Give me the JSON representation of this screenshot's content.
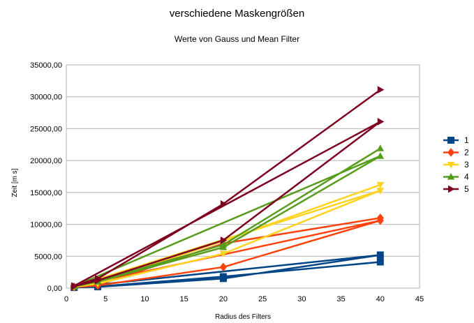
{
  "chart_data": {
    "type": "line",
    "title": "verschiedene Maskengrößen",
    "subtitle": "Werte von Gauss und Mean Filter",
    "xlabel": "Radius des Filters",
    "ylabel": "Zeit [m s]",
    "xlim": [
      0,
      45
    ],
    "ylim": [
      0,
      35000
    ],
    "xticks": [
      "0",
      "5",
      "10",
      "15",
      "20",
      "25",
      "30",
      "35",
      "40",
      "45"
    ],
    "xtick_values": [
      0,
      5,
      10,
      15,
      20,
      25,
      30,
      35,
      40,
      45
    ],
    "yticks": [
      "0,00",
      "5000,00",
      "10000,00",
      "15000,00",
      "20000,00",
      "25000,00",
      "30000,00",
      "35000,00"
    ],
    "ytick_values": [
      0,
      5000,
      10000,
      15000,
      20000,
      25000,
      30000,
      35000
    ],
    "grid": "horizontal",
    "legend_position": "right",
    "series": [
      {
        "name": "1",
        "color": "#004586",
        "marker": "square",
        "x": [
          1,
          4,
          20,
          40,
          1,
          4,
          20,
          40
        ],
        "y": [
          100,
          200,
          1500,
          5200,
          150,
          250,
          1800,
          4100
        ]
      },
      {
        "name": "2",
        "color": "#ff420e",
        "marker": "diamond",
        "x": [
          1,
          4,
          20,
          40,
          1,
          4,
          20,
          40
        ],
        "y": [
          150,
          400,
          3300,
          10600,
          200,
          500,
          7000,
          11000
        ]
      },
      {
        "name": "3",
        "color": "#ffd320",
        "marker": "triangle-down",
        "x": [
          1,
          4,
          20,
          40,
          1,
          4,
          20,
          40
        ],
        "y": [
          200,
          700,
          5400,
          15300,
          250,
          800,
          7400,
          16200
        ]
      },
      {
        "name": "4",
        "color": "#579d1c",
        "marker": "triangle-up",
        "x": [
          1,
          4,
          20,
          40,
          1,
          4,
          20,
          40
        ],
        "y": [
          250,
          1000,
          6400,
          20700,
          300,
          1100,
          6800,
          21900
        ]
      },
      {
        "name": "5",
        "color": "#7e0021",
        "marker": "triangle-right",
        "x": [
          1,
          4,
          20,
          40,
          1,
          4,
          20,
          40
        ],
        "y": [
          300,
          1200,
          7500,
          26100,
          350,
          1500,
          13200,
          31100
        ]
      }
    ]
  }
}
